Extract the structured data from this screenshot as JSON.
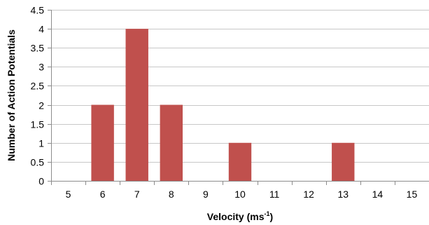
{
  "chart_data": {
    "type": "bar",
    "title": "",
    "xlabel": "Velocity (ms",
    "xlabel_superscript": "-1",
    "xlabel_suffix": ")",
    "ylabel": "Number of Action Potentials",
    "categories": [
      "5",
      "6",
      "7",
      "8",
      "9",
      "10",
      "11",
      "12",
      "13",
      "14",
      "15"
    ],
    "values": [
      0,
      2,
      4,
      2,
      0,
      1,
      0,
      0,
      1,
      0,
      0
    ],
    "ylim": [
      0,
      4.5
    ],
    "yticks": [
      "0",
      "0.5",
      "1",
      "1.5",
      "2",
      "2.5",
      "3",
      "3.5",
      "4",
      "4.5"
    ],
    "grid": true,
    "legend": "none",
    "bar_color": "#c0504d",
    "grid_color": "#c8c8c8",
    "axis_color": "#8c8c8c"
  }
}
